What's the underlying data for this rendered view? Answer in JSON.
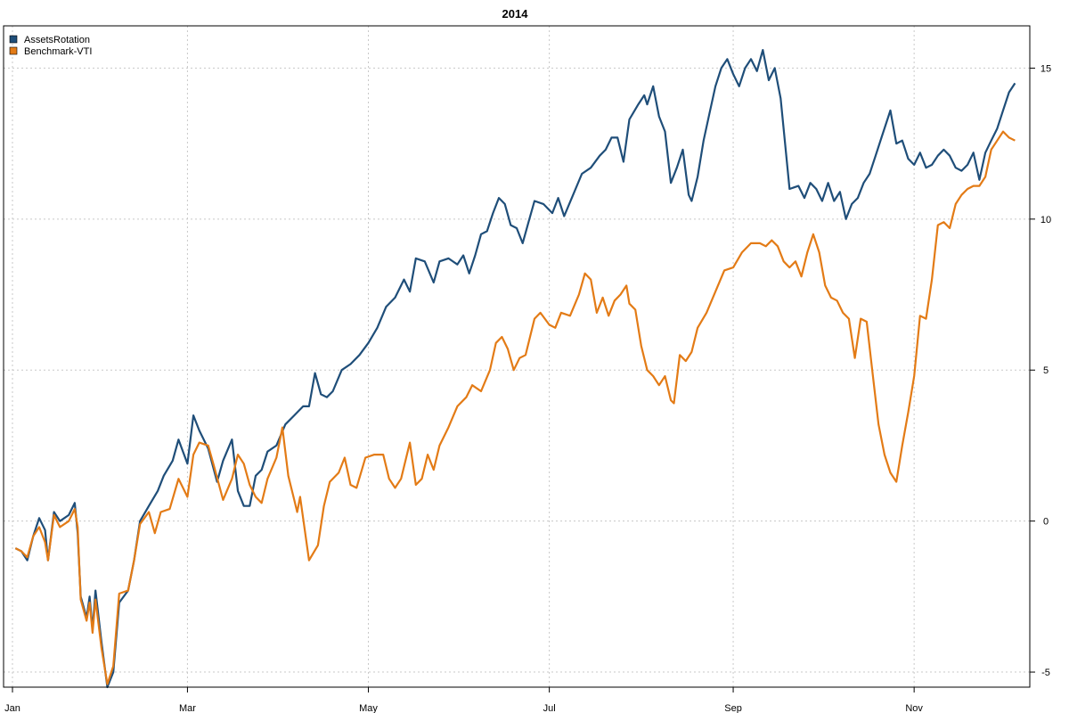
{
  "chart_data": {
    "type": "line",
    "title": "2014",
    "xlabel": "",
    "ylabel": "",
    "x_ticks": [
      {
        "label": "Jan",
        "day": 0
      },
      {
        "label": "Mar",
        "day": 59
      },
      {
        "label": "May",
        "day": 120
      },
      {
        "label": "Jul",
        "day": 181
      },
      {
        "label": "Sep",
        "day": 243
      },
      {
        "label": "Nov",
        "day": 304
      }
    ],
    "y_ticks": [
      -5,
      0,
      5,
      10,
      15
    ],
    "xlim": [
      -3,
      343
    ],
    "ylim": [
      -5.5,
      16.4
    ],
    "y_axis_side": "right",
    "grid": true,
    "legend_position": "top-left",
    "colors": {
      "AssetsRotation": "#1f4e79",
      "Benchmark-VTI": "#e37b16",
      "grid": "#c8c8c8"
    },
    "series": [
      {
        "name": "AssetsRotation",
        "points": [
          [
            1,
            -0.9
          ],
          [
            3,
            -1.0
          ],
          [
            5,
            -1.3
          ],
          [
            7,
            -0.5
          ],
          [
            9,
            0.1
          ],
          [
            11,
            -0.3
          ],
          [
            12,
            -1.3
          ],
          [
            14,
            0.3
          ],
          [
            16,
            0.0
          ],
          [
            19,
            0.2
          ],
          [
            21,
            0.6
          ],
          [
            22,
            -0.4
          ],
          [
            23,
            -2.5
          ],
          [
            25,
            -3.2
          ],
          [
            26,
            -2.5
          ],
          [
            27,
            -3.6
          ],
          [
            28,
            -2.3
          ],
          [
            30,
            -4.0
          ],
          [
            32,
            -5.5
          ],
          [
            34,
            -5.0
          ],
          [
            36,
            -2.7
          ],
          [
            39,
            -2.3
          ],
          [
            41,
            -1.3
          ],
          [
            43,
            0.0
          ],
          [
            46,
            0.5
          ],
          [
            49,
            1.0
          ],
          [
            51,
            1.5
          ],
          [
            54,
            2.0
          ],
          [
            56,
            2.7
          ],
          [
            59,
            1.9
          ],
          [
            61,
            3.5
          ],
          [
            63,
            3.0
          ],
          [
            66,
            2.4
          ],
          [
            69,
            1.3
          ],
          [
            71,
            2.0
          ],
          [
            74,
            2.7
          ],
          [
            76,
            1.0
          ],
          [
            78,
            0.5
          ],
          [
            80,
            0.5
          ],
          [
            82,
            1.5
          ],
          [
            84,
            1.7
          ],
          [
            86,
            2.3
          ],
          [
            89,
            2.5
          ],
          [
            92,
            3.2
          ],
          [
            95,
            3.5
          ],
          [
            98,
            3.8
          ],
          [
            100,
            3.8
          ],
          [
            102,
            4.9
          ],
          [
            104,
            4.2
          ],
          [
            106,
            4.1
          ],
          [
            108,
            4.3
          ],
          [
            111,
            5.0
          ],
          [
            114,
            5.2
          ],
          [
            117,
            5.5
          ],
          [
            120,
            5.9
          ],
          [
            123,
            6.4
          ],
          [
            126,
            7.1
          ],
          [
            129,
            7.4
          ],
          [
            132,
            8.0
          ],
          [
            134,
            7.6
          ],
          [
            136,
            8.7
          ],
          [
            139,
            8.6
          ],
          [
            142,
            7.9
          ],
          [
            144,
            8.6
          ],
          [
            147,
            8.7
          ],
          [
            150,
            8.5
          ],
          [
            152,
            8.8
          ],
          [
            154,
            8.2
          ],
          [
            156,
            8.8
          ],
          [
            158,
            9.5
          ],
          [
            160,
            9.6
          ],
          [
            162,
            10.2
          ],
          [
            164,
            10.7
          ],
          [
            166,
            10.5
          ],
          [
            168,
            9.8
          ],
          [
            170,
            9.7
          ],
          [
            172,
            9.2
          ],
          [
            174,
            9.9
          ],
          [
            176,
            10.6
          ],
          [
            179,
            10.5
          ],
          [
            182,
            10.2
          ],
          [
            184,
            10.7
          ],
          [
            186,
            10.1
          ],
          [
            189,
            10.8
          ],
          [
            192,
            11.5
          ],
          [
            195,
            11.7
          ],
          [
            198,
            12.1
          ],
          [
            200,
            12.3
          ],
          [
            202,
            12.7
          ],
          [
            204,
            12.7
          ],
          [
            206,
            11.9
          ],
          [
            208,
            13.3
          ],
          [
            211,
            13.8
          ],
          [
            213,
            14.1
          ],
          [
            214,
            13.8
          ],
          [
            216,
            14.4
          ],
          [
            218,
            13.4
          ],
          [
            220,
            12.9
          ],
          [
            222,
            11.2
          ],
          [
            224,
            11.7
          ],
          [
            226,
            12.3
          ],
          [
            228,
            10.8
          ],
          [
            229,
            10.6
          ],
          [
            231,
            11.4
          ],
          [
            233,
            12.6
          ],
          [
            235,
            13.5
          ],
          [
            237,
            14.4
          ],
          [
            239,
            15.0
          ],
          [
            241,
            15.3
          ],
          [
            243,
            14.8
          ],
          [
            245,
            14.4
          ],
          [
            247,
            15.0
          ],
          [
            249,
            15.3
          ],
          [
            251,
            14.9
          ],
          [
            253,
            15.6
          ],
          [
            255,
            14.6
          ],
          [
            257,
            15.0
          ],
          [
            259,
            14.0
          ],
          [
            262,
            11.0
          ],
          [
            265,
            11.1
          ],
          [
            267,
            10.7
          ],
          [
            269,
            11.2
          ],
          [
            271,
            11.0
          ],
          [
            273,
            10.6
          ],
          [
            275,
            11.2
          ],
          [
            277,
            10.6
          ],
          [
            279,
            10.9
          ],
          [
            281,
            10.0
          ],
          [
            283,
            10.5
          ],
          [
            285,
            10.7
          ],
          [
            287,
            11.2
          ],
          [
            289,
            11.5
          ],
          [
            291,
            12.1
          ],
          [
            293,
            12.7
          ],
          [
            296,
            13.6
          ],
          [
            298,
            12.5
          ],
          [
            300,
            12.6
          ],
          [
            302,
            12.0
          ],
          [
            304,
            11.8
          ],
          [
            306,
            12.2
          ],
          [
            308,
            11.7
          ],
          [
            310,
            11.8
          ],
          [
            312,
            12.1
          ],
          [
            314,
            12.3
          ],
          [
            316,
            12.1
          ],
          [
            318,
            11.7
          ],
          [
            320,
            11.6
          ],
          [
            322,
            11.8
          ],
          [
            324,
            12.2
          ],
          [
            326,
            11.3
          ],
          [
            328,
            12.2
          ],
          [
            330,
            12.6
          ],
          [
            332,
            13.0
          ],
          [
            334,
            13.6
          ],
          [
            336,
            14.2
          ],
          [
            338,
            14.5
          ]
        ]
      },
      {
        "name": "Benchmark-VTI",
        "points": [
          [
            1,
            -0.9
          ],
          [
            3,
            -1.0
          ],
          [
            5,
            -1.2
          ],
          [
            7,
            -0.5
          ],
          [
            9,
            -0.2
          ],
          [
            11,
            -0.7
          ],
          [
            12,
            -1.3
          ],
          [
            14,
            0.2
          ],
          [
            16,
            -0.2
          ],
          [
            19,
            0.0
          ],
          [
            21,
            0.4
          ],
          [
            22,
            -0.2
          ],
          [
            23,
            -2.6
          ],
          [
            25,
            -3.3
          ],
          [
            26,
            -2.7
          ],
          [
            27,
            -3.7
          ],
          [
            28,
            -2.6
          ],
          [
            30,
            -4.2
          ],
          [
            32,
            -5.4
          ],
          [
            34,
            -4.8
          ],
          [
            36,
            -2.4
          ],
          [
            39,
            -2.3
          ],
          [
            41,
            -1.3
          ],
          [
            43,
            -0.1
          ],
          [
            46,
            0.3
          ],
          [
            48,
            -0.4
          ],
          [
            50,
            0.3
          ],
          [
            53,
            0.4
          ],
          [
            56,
            1.4
          ],
          [
            59,
            0.8
          ],
          [
            61,
            2.2
          ],
          [
            63,
            2.6
          ],
          [
            66,
            2.5
          ],
          [
            68,
            1.8
          ],
          [
            71,
            0.7
          ],
          [
            74,
            1.4
          ],
          [
            76,
            2.2
          ],
          [
            78,
            1.9
          ],
          [
            80,
            1.2
          ],
          [
            82,
            0.8
          ],
          [
            84,
            0.6
          ],
          [
            86,
            1.4
          ],
          [
            89,
            2.1
          ],
          [
            91,
            3.1
          ],
          [
            93,
            1.5
          ],
          [
            95,
            0.7
          ],
          [
            96,
            0.3
          ],
          [
            97,
            0.8
          ],
          [
            100,
            -1.3
          ],
          [
            103,
            -0.8
          ],
          [
            105,
            0.5
          ],
          [
            107,
            1.3
          ],
          [
            110,
            1.6
          ],
          [
            112,
            2.1
          ],
          [
            114,
            1.2
          ],
          [
            116,
            1.1
          ],
          [
            119,
            2.1
          ],
          [
            122,
            2.2
          ],
          [
            125,
            2.2
          ],
          [
            127,
            1.4
          ],
          [
            129,
            1.1
          ],
          [
            131,
            1.4
          ],
          [
            134,
            2.6
          ],
          [
            136,
            1.2
          ],
          [
            138,
            1.4
          ],
          [
            140,
            2.2
          ],
          [
            142,
            1.7
          ],
          [
            144,
            2.5
          ],
          [
            147,
            3.1
          ],
          [
            150,
            3.8
          ],
          [
            153,
            4.1
          ],
          [
            155,
            4.5
          ],
          [
            158,
            4.3
          ],
          [
            161,
            5.0
          ],
          [
            163,
            5.9
          ],
          [
            165,
            6.1
          ],
          [
            167,
            5.7
          ],
          [
            169,
            5.0
          ],
          [
            171,
            5.4
          ],
          [
            173,
            5.5
          ],
          [
            176,
            6.7
          ],
          [
            178,
            6.9
          ],
          [
            181,
            6.5
          ],
          [
            183,
            6.4
          ],
          [
            185,
            6.9
          ],
          [
            188,
            6.8
          ],
          [
            191,
            7.5
          ],
          [
            193,
            8.2
          ],
          [
            195,
            8.0
          ],
          [
            197,
            6.9
          ],
          [
            199,
            7.4
          ],
          [
            201,
            6.8
          ],
          [
            203,
            7.3
          ],
          [
            205,
            7.5
          ],
          [
            207,
            7.8
          ],
          [
            208,
            7.2
          ],
          [
            210,
            7.0
          ],
          [
            212,
            5.8
          ],
          [
            214,
            5.0
          ],
          [
            216,
            4.8
          ],
          [
            218,
            4.5
          ],
          [
            220,
            4.8
          ],
          [
            222,
            4.0
          ],
          [
            223,
            3.9
          ],
          [
            225,
            5.5
          ],
          [
            227,
            5.3
          ],
          [
            229,
            5.6
          ],
          [
            231,
            6.4
          ],
          [
            234,
            6.9
          ],
          [
            237,
            7.6
          ],
          [
            240,
            8.3
          ],
          [
            243,
            8.4
          ],
          [
            246,
            8.9
          ],
          [
            249,
            9.2
          ],
          [
            252,
            9.2
          ],
          [
            254,
            9.1
          ],
          [
            256,
            9.3
          ],
          [
            258,
            9.1
          ],
          [
            260,
            8.6
          ],
          [
            262,
            8.4
          ],
          [
            264,
            8.6
          ],
          [
            266,
            8.1
          ],
          [
            268,
            8.9
          ],
          [
            270,
            9.5
          ],
          [
            272,
            8.9
          ],
          [
            274,
            7.8
          ],
          [
            276,
            7.4
          ],
          [
            278,
            7.3
          ],
          [
            280,
            6.9
          ],
          [
            282,
            6.7
          ],
          [
            284,
            5.4
          ],
          [
            286,
            6.7
          ],
          [
            288,
            6.6
          ],
          [
            290,
            4.9
          ],
          [
            292,
            3.2
          ],
          [
            294,
            2.2
          ],
          [
            296,
            1.6
          ],
          [
            298,
            1.3
          ],
          [
            300,
            2.5
          ],
          [
            302,
            3.6
          ],
          [
            304,
            4.8
          ],
          [
            306,
            6.8
          ],
          [
            308,
            6.7
          ],
          [
            310,
            8.0
          ],
          [
            312,
            9.8
          ],
          [
            314,
            9.9
          ],
          [
            316,
            9.7
          ],
          [
            318,
            10.5
          ],
          [
            320,
            10.8
          ],
          [
            322,
            11.0
          ],
          [
            324,
            11.1
          ],
          [
            326,
            11.1
          ],
          [
            328,
            11.4
          ],
          [
            330,
            12.3
          ],
          [
            332,
            12.6
          ],
          [
            334,
            12.9
          ],
          [
            336,
            12.7
          ],
          [
            338,
            12.6
          ]
        ]
      }
    ]
  }
}
